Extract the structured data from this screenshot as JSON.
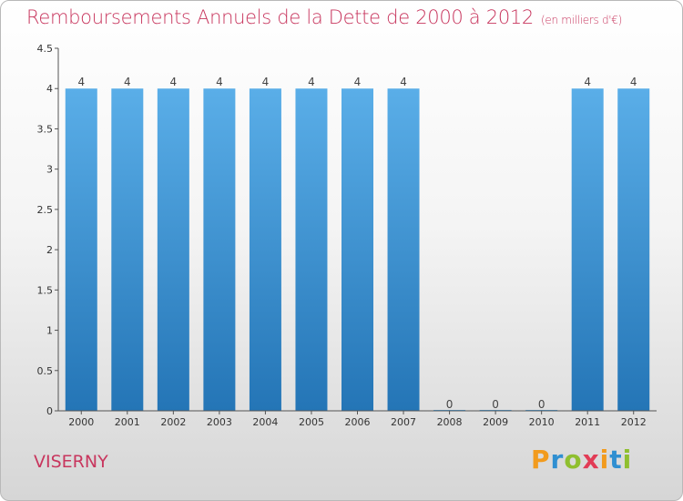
{
  "header": {
    "title": "Remboursements Annuels de la Dette de 2000 à 2012",
    "unit": "(en milliers d'€)"
  },
  "footer": {
    "commune": "VISERNY",
    "logo": [
      "P",
      "r",
      "o",
      "x",
      "i",
      "t",
      "i"
    ]
  },
  "colors": {
    "title": "#c8365e",
    "bar_top": "#5aaee8",
    "bar_bottom": "#2475b6",
    "axis": "#555555",
    "logo": [
      "#f29b1d",
      "#2f8fd1",
      "#8fbf2f",
      "#e23c56",
      "#f29b1d",
      "#2f8fd1",
      "#8fbf2f"
    ]
  },
  "chart_data": {
    "type": "bar",
    "title": "Remboursements Annuels de la Dette de 2000 à 2012",
    "xlabel": "",
    "ylabel": "",
    "categories": [
      "2000",
      "2001",
      "2002",
      "2003",
      "2004",
      "2005",
      "2006",
      "2007",
      "2008",
      "2009",
      "2010",
      "2011",
      "2012"
    ],
    "values": [
      4,
      4,
      4,
      4,
      4,
      4,
      4,
      4,
      0,
      0,
      0,
      4,
      4
    ],
    "data_labels": [
      "4",
      "4",
      "4",
      "4",
      "4",
      "4",
      "4",
      "4",
      "0",
      "0",
      "0",
      "4",
      "4"
    ],
    "ylim": [
      0,
      4.5
    ],
    "yticks": [
      0,
      0.5,
      1,
      1.5,
      2,
      2.5,
      3,
      3.5,
      4,
      4.5
    ],
    "ytick_labels": [
      "0",
      "0.5",
      "1",
      "1.5",
      "2",
      "2.5",
      "3",
      "3.5",
      "4",
      "4.5"
    ],
    "grid": false,
    "legend": "none"
  }
}
